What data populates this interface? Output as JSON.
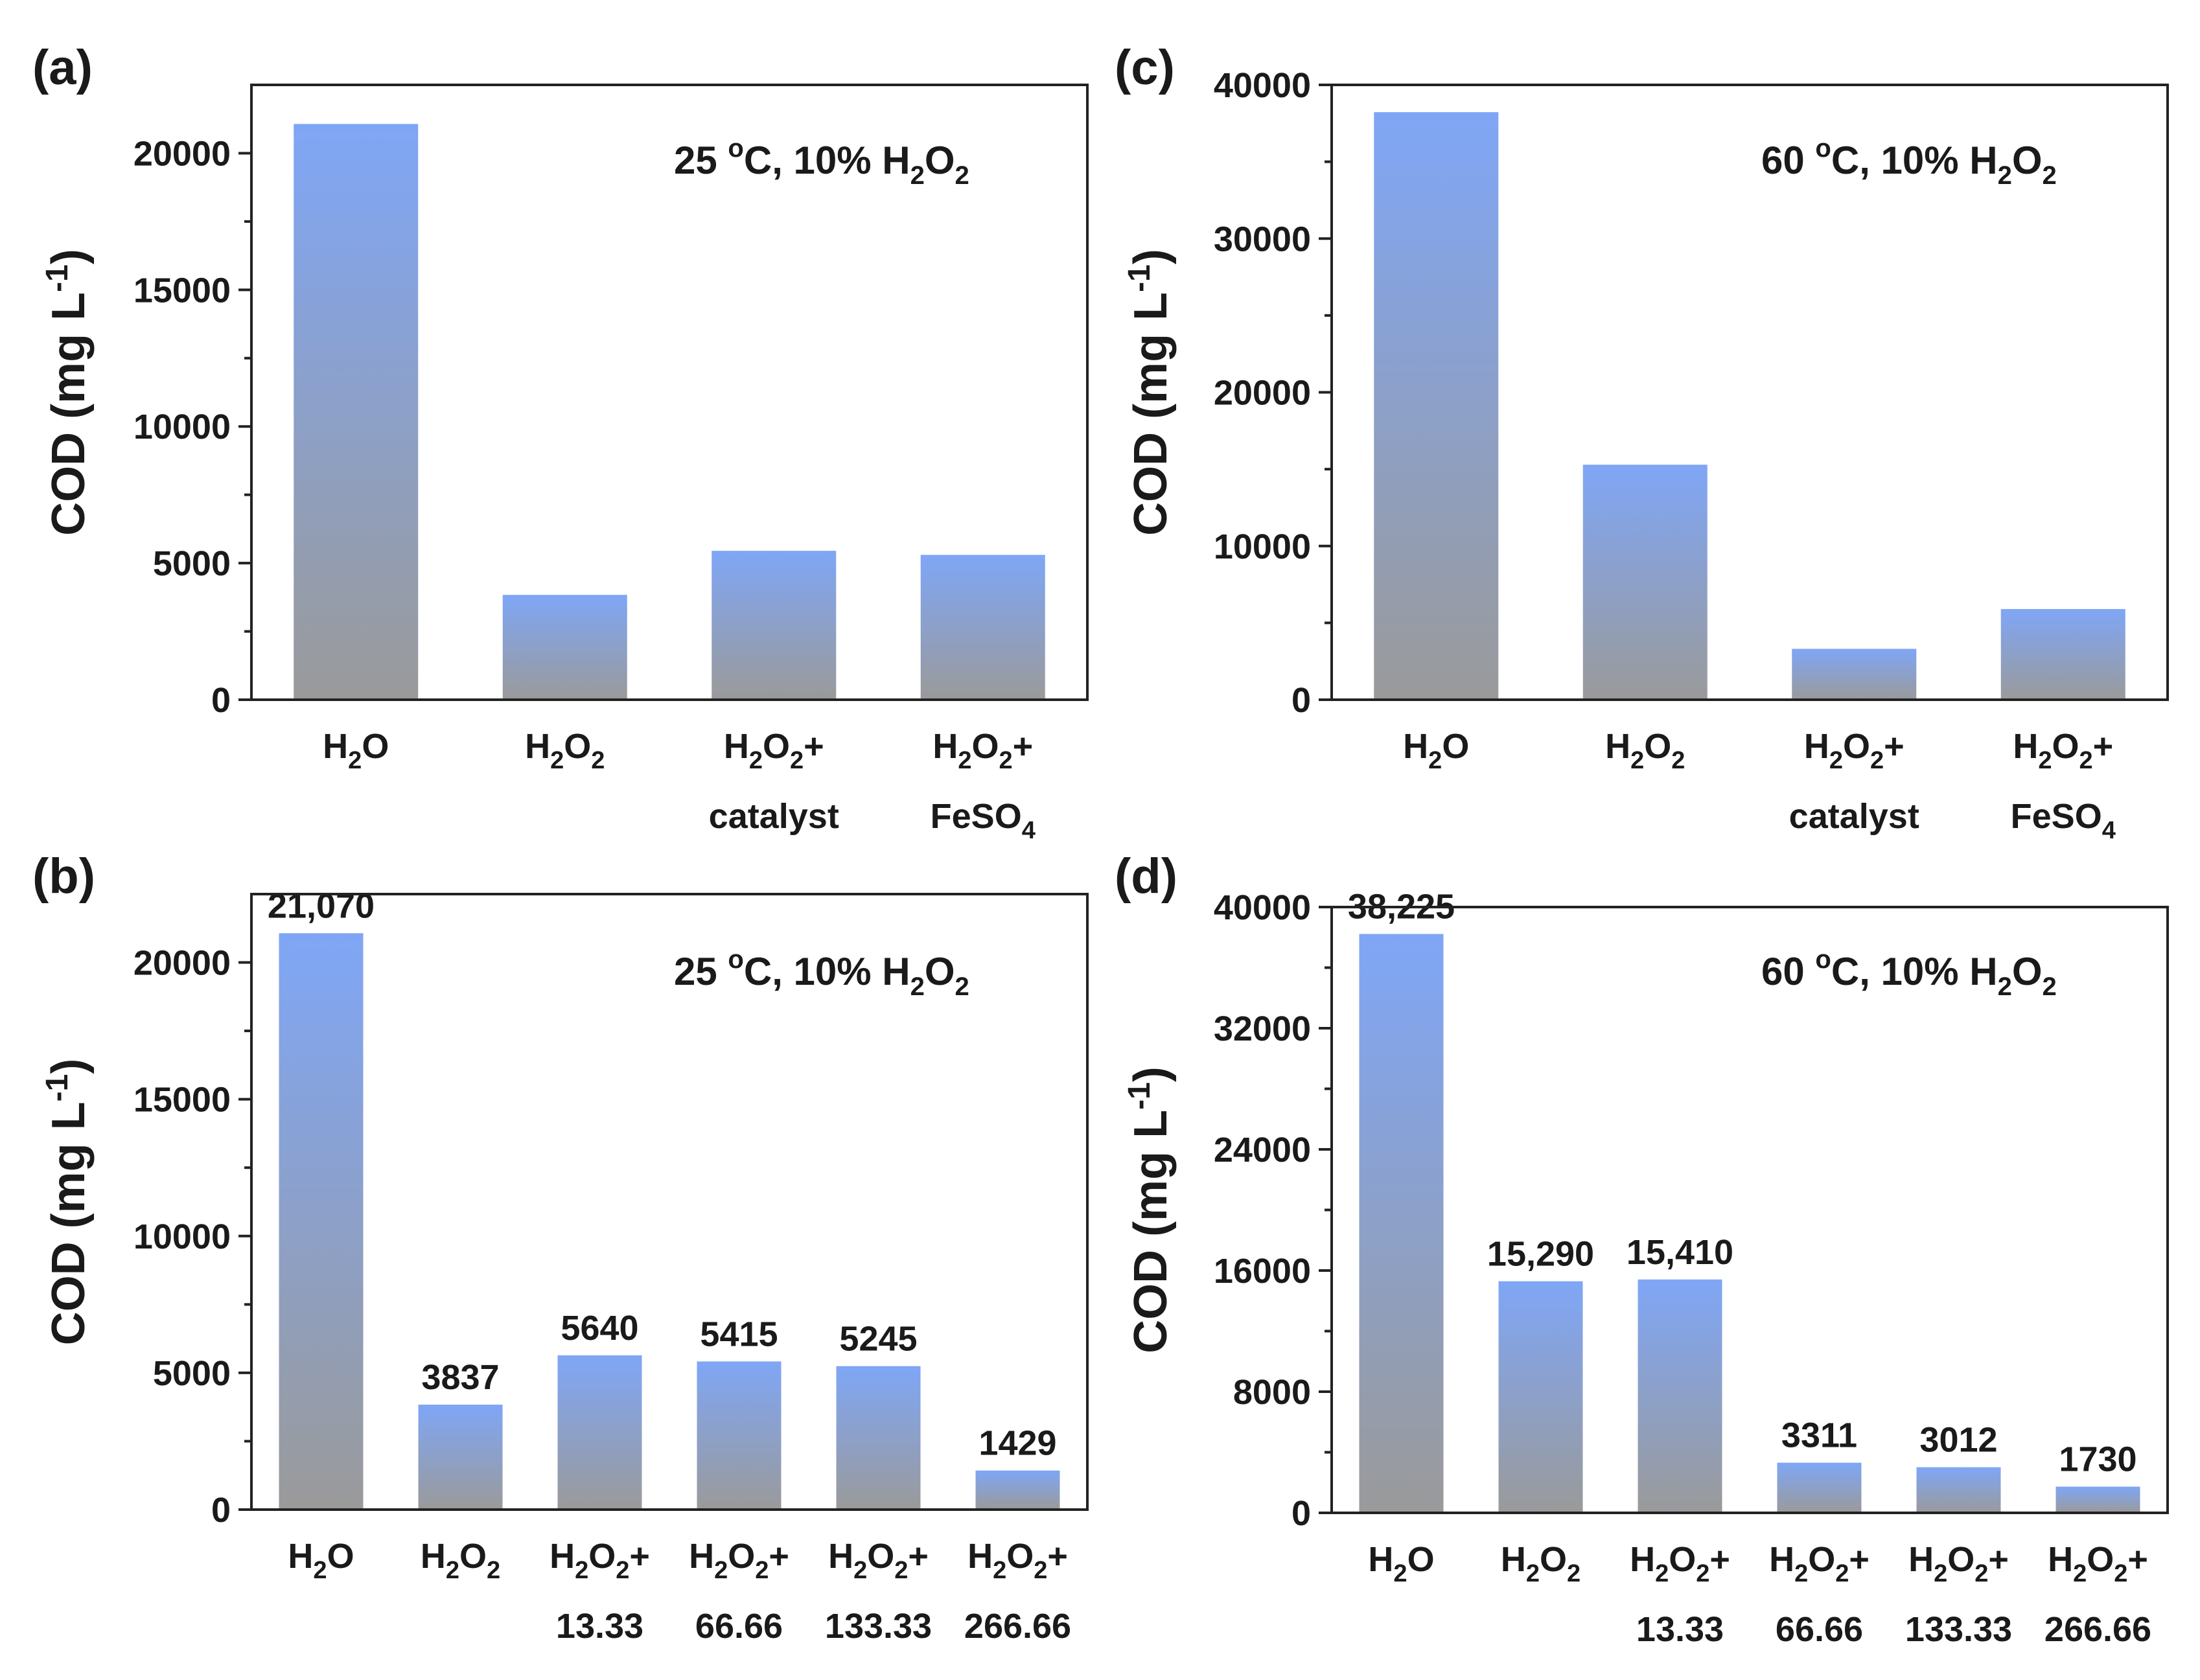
{
  "colors": {
    "bar_top": "#7fa6f6",
    "bar_bottom": "#9a9a9a",
    "axis": "#222222",
    "text": "#1a1a1a"
  },
  "chart_data": [
    {
      "panel": "(a)",
      "type": "bar",
      "annotation": {
        "parts": [
          "25 ",
          "o",
          "C, 10%  H",
          "2",
          "O",
          "2"
        ]
      },
      "ylabel": "COD (mg L-1)",
      "ylim": [
        0,
        22500
      ],
      "yticks": [
        0,
        5000,
        10000,
        15000,
        20000
      ],
      "categories": [
        {
          "lines": [
            [
              "H",
              "2",
              "O"
            ]
          ]
        },
        {
          "lines": [
            [
              "H",
              "2",
              "O",
              "2"
            ]
          ]
        },
        {
          "lines": [
            [
              "H",
              "2",
              "O",
              "2",
              "+"
            ],
            [
              "catalyst"
            ]
          ]
        },
        {
          "lines": [
            [
              "H",
              "2",
              "O",
              "2",
              "+"
            ],
            [
              "FeSO",
              "4"
            ]
          ]
        }
      ],
      "values": [
        21070,
        3837,
        5450,
        5300
      ],
      "value_labels": []
    },
    {
      "panel": "(b)",
      "type": "bar",
      "annotation": {
        "parts": [
          "25 ",
          "o",
          "C, 10%  H",
          "2",
          "O",
          "2"
        ]
      },
      "ylabel": "COD (mg L-1)",
      "ylim": [
        0,
        22500
      ],
      "yticks": [
        0,
        5000,
        10000,
        15000,
        20000
      ],
      "categories": [
        {
          "lines": [
            [
              "H",
              "2",
              "O"
            ]
          ]
        },
        {
          "lines": [
            [
              "H",
              "2",
              "O",
              "2"
            ]
          ]
        },
        {
          "lines": [
            [
              "H",
              "2",
              "O",
              "2",
              "+"
            ],
            [
              "13.33"
            ]
          ]
        },
        {
          "lines": [
            [
              "H",
              "2",
              "O",
              "2",
              "+"
            ],
            [
              "66.66"
            ]
          ]
        },
        {
          "lines": [
            [
              "H",
              "2",
              "O",
              "2",
              "+"
            ],
            [
              "133.33"
            ]
          ]
        },
        {
          "lines": [
            [
              "H",
              "2",
              "O",
              "2",
              "+"
            ],
            [
              "266.66"
            ]
          ]
        }
      ],
      "values": [
        21070,
        3837,
        5640,
        5415,
        5245,
        1429
      ],
      "value_labels": [
        "21,070",
        "3837",
        "5640",
        "5415",
        "5245",
        "1429"
      ]
    },
    {
      "panel": "(c)",
      "type": "bar",
      "annotation": {
        "parts": [
          "60 ",
          "o",
          "C, 10%  H",
          "2",
          "O",
          "2"
        ]
      },
      "ylabel": "COD (mg L-1)",
      "ylim": [
        0,
        40000
      ],
      "yticks": [
        0,
        10000,
        20000,
        30000,
        40000
      ],
      "categories": [
        {
          "lines": [
            [
              "H",
              "2",
              "O"
            ]
          ]
        },
        {
          "lines": [
            [
              "H",
              "2",
              "O",
              "2"
            ]
          ]
        },
        {
          "lines": [
            [
              "H",
              "2",
              "O",
              "2",
              "+"
            ],
            [
              "catalyst"
            ]
          ]
        },
        {
          "lines": [
            [
              "H",
              "2",
              "O",
              "2",
              "+"
            ],
            [
              "FeSO",
              "4"
            ]
          ]
        }
      ],
      "values": [
        38225,
        15290,
        3311,
        5900
      ],
      "value_labels": []
    },
    {
      "panel": "(d)",
      "type": "bar",
      "annotation": {
        "parts": [
          "60 ",
          "o",
          "C, 10%  H",
          "2",
          "O",
          "2"
        ]
      },
      "ylabel": "COD (mg L-1)",
      "ylim": [
        0,
        40000
      ],
      "yticks": [
        0,
        8000,
        16000,
        24000,
        32000,
        40000
      ],
      "categories": [
        {
          "lines": [
            [
              "H",
              "2",
              "O"
            ]
          ]
        },
        {
          "lines": [
            [
              "H",
              "2",
              "O",
              "2"
            ]
          ]
        },
        {
          "lines": [
            [
              "H",
              "2",
              "O",
              "2",
              "+"
            ],
            [
              "13.33"
            ]
          ]
        },
        {
          "lines": [
            [
              "H",
              "2",
              "O",
              "2",
              "+"
            ],
            [
              "66.66"
            ]
          ]
        },
        {
          "lines": [
            [
              "H",
              "2",
              "O",
              "2",
              "+"
            ],
            [
              "133.33"
            ]
          ]
        },
        {
          "lines": [
            [
              "H",
              "2",
              "O",
              "2",
              "+"
            ],
            [
              "266.66"
            ]
          ]
        }
      ],
      "values": [
        38225,
        15290,
        15410,
        3311,
        3012,
        1730
      ],
      "value_labels": [
        "38,225",
        "15,290",
        "15,410",
        "3311",
        "3012",
        "1730"
      ]
    }
  ]
}
